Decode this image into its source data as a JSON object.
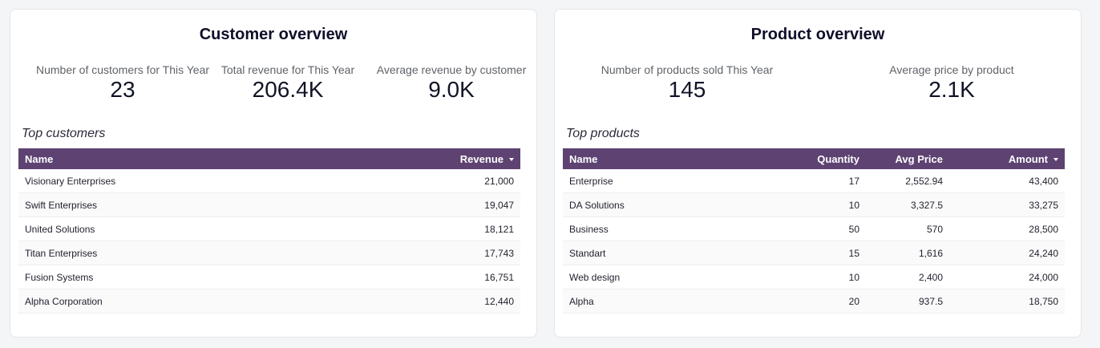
{
  "customer_overview": {
    "title": "Customer overview",
    "kpis": [
      {
        "label": "Number of customers for This Year",
        "value": "23"
      },
      {
        "label": "Total revenue for This Year",
        "value": "206.4K"
      },
      {
        "label": "Average revenue by customer",
        "value": "9.0K"
      }
    ],
    "section_title": "Top customers",
    "table": {
      "columns": [
        "Name",
        "Revenue"
      ],
      "sort_icon": "caret-down-icon",
      "rows": [
        {
          "name": "Visionary Enterprises",
          "revenue": "21,000"
        },
        {
          "name": "Swift Enterprises",
          "revenue": "19,047"
        },
        {
          "name": "United Solutions",
          "revenue": "18,121"
        },
        {
          "name": "Titan Enterprises",
          "revenue": "17,743"
        },
        {
          "name": "Fusion Systems",
          "revenue": "16,751"
        },
        {
          "name": "Alpha Corporation",
          "revenue": "12,440"
        }
      ]
    }
  },
  "product_overview": {
    "title": "Product overview",
    "kpis": [
      {
        "label": "Number of products sold This Year",
        "value": "145"
      },
      {
        "label": "Average price by product",
        "value": "2.1K"
      }
    ],
    "section_title": "Top products",
    "table": {
      "columns": [
        "Name",
        "Quantity",
        "Avg Price",
        "Amount"
      ],
      "sort_icon": "caret-down-icon",
      "rows": [
        {
          "name": "Enterprise",
          "quantity": "17",
          "avg_price": "2,552.94",
          "amount": "43,400"
        },
        {
          "name": "DA Solutions",
          "quantity": "10",
          "avg_price": "3,327.5",
          "amount": "33,275"
        },
        {
          "name": "Business",
          "quantity": "50",
          "avg_price": "570",
          "amount": "28,500"
        },
        {
          "name": "Standart",
          "quantity": "15",
          "avg_price": "1,616",
          "amount": "24,240"
        },
        {
          "name": "Web design",
          "quantity": "10",
          "avg_price": "2,400",
          "amount": "24,000"
        },
        {
          "name": "Alpha",
          "quantity": "20",
          "avg_price": "937.5",
          "amount": "18,750"
        }
      ]
    }
  },
  "colors": {
    "table_header": "#5e4272",
    "card_background": "#ffffff",
    "page_background": "#f3f5f6"
  }
}
